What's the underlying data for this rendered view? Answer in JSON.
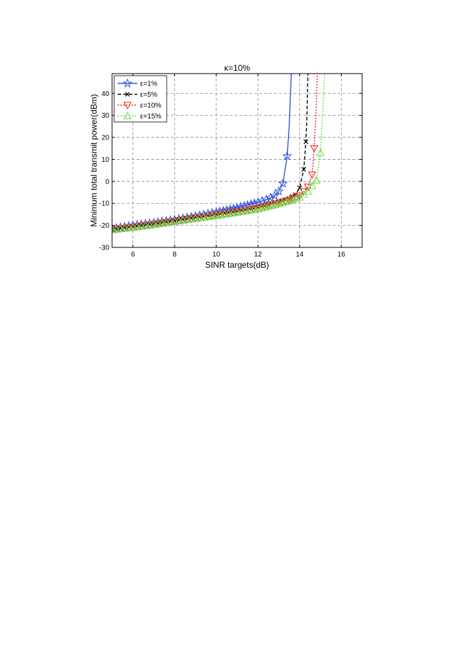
{
  "chart_data": {
    "type": "line",
    "title": "κ=10%",
    "xlabel": "SINR targets(dB)",
    "ylabel": "Minimum total transmit power(dBm)",
    "xlim": [
      5,
      17
    ],
    "ylim": [
      -30,
      49
    ],
    "xticks": [
      6,
      8,
      10,
      12,
      14,
      16
    ],
    "yticks": [
      -30,
      -20,
      -10,
      0,
      10,
      20,
      30,
      40
    ],
    "grid": true,
    "legend_position": "top-left",
    "series": [
      {
        "name": "ε=1%",
        "color": "#3355dd",
        "line_style": "solid",
        "marker": "star",
        "points": [
          [
            5,
            -21.5
          ],
          [
            6,
            -20
          ],
          [
            7,
            -18.8
          ],
          [
            8,
            -17.4
          ],
          [
            9,
            -15.8
          ],
          [
            10,
            -14
          ],
          [
            10.5,
            -13
          ],
          [
            11,
            -12
          ],
          [
            11.5,
            -10.8
          ],
          [
            12,
            -9.6
          ],
          [
            12.4,
            -8.3
          ],
          [
            12.8,
            -6.5
          ],
          [
            13,
            -4.5
          ],
          [
            13.2,
            -1
          ],
          [
            13.4,
            11.5
          ],
          [
            13.5,
            25
          ],
          [
            13.6,
            49
          ]
        ]
      },
      {
        "name": "ε=5%",
        "color": "#000000",
        "line_style": "dashed",
        "marker": "x",
        "points": [
          [
            5,
            -21.8
          ],
          [
            6,
            -20.5
          ],
          [
            7,
            -19.2
          ],
          [
            8,
            -17.8
          ],
          [
            9,
            -16.4
          ],
          [
            10,
            -15
          ],
          [
            11,
            -13.5
          ],
          [
            12,
            -11.8
          ],
          [
            12.5,
            -10.5
          ],
          [
            13,
            -9.2
          ],
          [
            13.5,
            -7.8
          ],
          [
            13.8,
            -6
          ],
          [
            14,
            -3
          ],
          [
            14.2,
            5.5
          ],
          [
            14.3,
            18
          ],
          [
            14.35,
            30
          ],
          [
            14.4,
            49
          ]
        ]
      },
      {
        "name": "ε=10%",
        "color": "#ee2222",
        "line_style": "dotted",
        "marker": "triangle-down",
        "points": [
          [
            5,
            -22
          ],
          [
            6,
            -20.8
          ],
          [
            7,
            -19.5
          ],
          [
            8,
            -18.1
          ],
          [
            9,
            -16.7
          ],
          [
            10,
            -15.3
          ],
          [
            11,
            -13.8
          ],
          [
            12,
            -12.2
          ],
          [
            12.5,
            -11
          ],
          [
            13,
            -9.8
          ],
          [
            13.5,
            -8.5
          ],
          [
            14,
            -6.5
          ],
          [
            14.4,
            -2.5
          ],
          [
            14.6,
            3
          ],
          [
            14.7,
            15
          ],
          [
            14.78,
            30
          ],
          [
            14.85,
            49
          ]
        ]
      },
      {
        "name": "ε=15%",
        "color": "#66dd44",
        "line_style": "dotted",
        "marker": "triangle-up",
        "points": [
          [
            5,
            -22
          ],
          [
            6,
            -21
          ],
          [
            7,
            -19.7
          ],
          [
            8,
            -18.3
          ],
          [
            9,
            -16.9
          ],
          [
            10,
            -15.6
          ],
          [
            11,
            -14.1
          ],
          [
            12,
            -12.6
          ],
          [
            12.5,
            -11.4
          ],
          [
            13,
            -10.2
          ],
          [
            13.5,
            -8.9
          ],
          [
            14,
            -7.2
          ],
          [
            14.4,
            -4.5
          ],
          [
            14.8,
            0.5
          ],
          [
            15,
            13
          ],
          [
            15.1,
            30
          ],
          [
            15.2,
            49
          ]
        ]
      }
    ]
  }
}
